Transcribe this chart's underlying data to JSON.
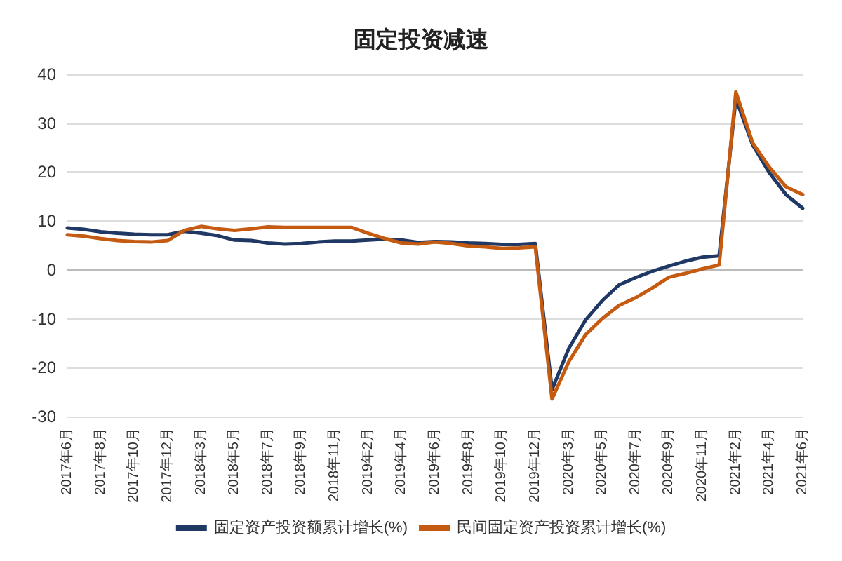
{
  "chart_data": {
    "type": "line",
    "title": "固定投资减速",
    "categories": [
      "2017年6月",
      null,
      "2017年8月",
      null,
      "2017年10月",
      null,
      "2017年12月",
      null,
      "2018年3月",
      null,
      "2018年5月",
      null,
      "2018年7月",
      null,
      "2018年9月",
      null,
      "2018年11月",
      null,
      "2019年2月",
      null,
      "2019年4月",
      null,
      "2019年6月",
      null,
      "2019年8月",
      null,
      "2019年10月",
      null,
      "2019年12月",
      null,
      "2020年3月",
      null,
      "2020年5月",
      null,
      "2020年7月",
      null,
      "2020年9月",
      null,
      "2020年11月",
      null,
      "2021年2月",
      null,
      "2021年4月",
      null,
      "2021年6月"
    ],
    "series": [
      {
        "name": "固定资产投资额累计增长(%)",
        "color": "#203864",
        "values": [
          8.6,
          8.3,
          7.8,
          7.5,
          7.3,
          7.2,
          7.2,
          7.9,
          7.5,
          7.0,
          6.1,
          6.0,
          5.5,
          5.3,
          5.4,
          5.7,
          5.9,
          5.9,
          6.1,
          6.3,
          6.1,
          5.6,
          5.8,
          5.7,
          5.5,
          5.4,
          5.2,
          5.2,
          5.4,
          -24.5,
          -16.1,
          -10.3,
          -6.3,
          -3.1,
          -1.6,
          -0.3,
          0.8,
          1.8,
          2.6,
          2.9,
          35.0,
          25.6,
          19.9,
          15.4,
          12.6
        ]
      },
      {
        "name": "民间固定资产投资累计增长(%)",
        "color": "#c55a11",
        "values": [
          7.2,
          6.9,
          6.4,
          6.0,
          5.8,
          5.7,
          6.0,
          8.1,
          8.9,
          8.4,
          8.1,
          8.4,
          8.8,
          8.7,
          8.7,
          8.7,
          8.7,
          8.7,
          7.5,
          6.4,
          5.5,
          5.3,
          5.7,
          5.4,
          4.9,
          4.7,
          4.4,
          4.5,
          4.7,
          -26.4,
          -18.8,
          -13.3,
          -10.0,
          -7.3,
          -5.7,
          -3.7,
          -1.5,
          -0.7,
          0.2,
          1.0,
          36.4,
          26.0,
          21.0,
          17.0,
          15.4
        ]
      }
    ],
    "ylim": [
      -30,
      40
    ],
    "yticks": [
      -30,
      -20,
      -10,
      0,
      10,
      20,
      30,
      40
    ],
    "grid": "y",
    "legend": "bottom",
    "marker": "none",
    "line_style": "solid"
  }
}
